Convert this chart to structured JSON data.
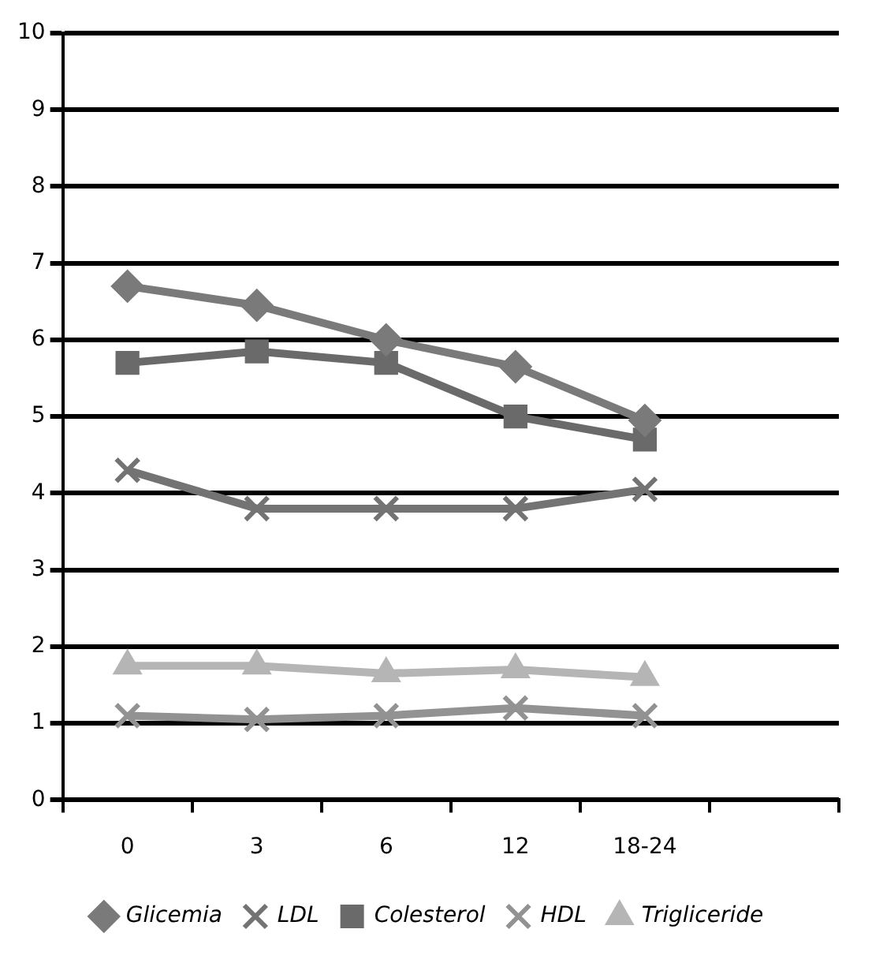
{
  "chart_data": {
    "type": "line",
    "categories": [
      "0",
      "3",
      "6",
      "12",
      "18-24",
      null
    ],
    "ylim": [
      0,
      10
    ],
    "yticks": [
      0,
      1,
      2,
      3,
      4,
      5,
      6,
      7,
      8,
      9,
      10
    ],
    "grid": "y",
    "legend": "bottom",
    "line_style": "solid",
    "series": [
      {
        "name": "Glicemia",
        "color": "#7a7a7a",
        "marker": "diamond",
        "values": [
          6.7,
          6.45,
          6.0,
          5.65,
          4.95,
          null
        ]
      },
      {
        "name": "LDL",
        "color": "#737373",
        "marker": "cross",
        "values": [
          4.3,
          3.8,
          3.8,
          3.8,
          4.05,
          null
        ]
      },
      {
        "name": "Colesterol",
        "color": "#6a6a6a",
        "marker": "square",
        "values": [
          5.7,
          5.85,
          5.7,
          5.0,
          4.7,
          null
        ]
      },
      {
        "name": "HDL",
        "color": "#929292",
        "marker": "cross",
        "values": [
          1.1,
          1.05,
          1.1,
          1.2,
          1.1,
          null
        ]
      },
      {
        "name": "Trigliceride",
        "color": "#b5b5b5",
        "marker": "triangle",
        "values": [
          1.75,
          1.75,
          1.65,
          1.7,
          1.6,
          null
        ]
      }
    ]
  }
}
